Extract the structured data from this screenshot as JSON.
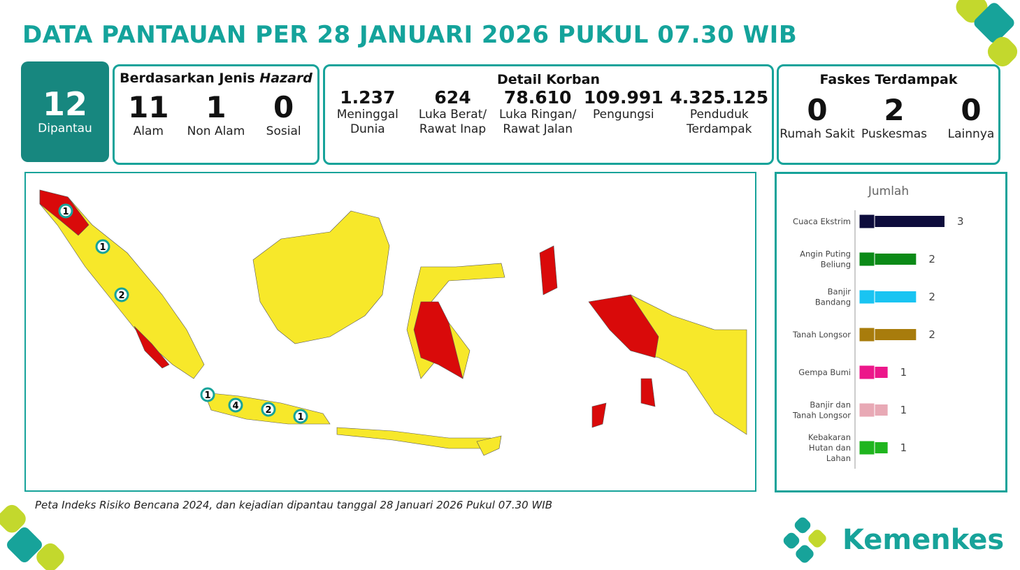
{
  "header": {
    "title": "DATA PANTAUAN PER 28 JANUARI 2026 PUKUL 07.30 WIB"
  },
  "summary": {
    "count": 12,
    "label": "Dipantau"
  },
  "hazard": {
    "title": "Berdasarkan Jenis",
    "title_emphasis": "Hazard",
    "items": [
      {
        "value": 11,
        "label": "Alam"
      },
      {
        "value": 1,
        "label": "Non Alam"
      },
      {
        "value": 0,
        "label": "Sosial"
      }
    ]
  },
  "victims": {
    "title": "Detail Korban",
    "items": [
      {
        "value": "1.237",
        "label": "Meninggal Dunia"
      },
      {
        "value": "624",
        "label": "Luka Berat/ Rawat Inap"
      },
      {
        "value": "78.610",
        "label": "Luka Ringan/ Rawat Jalan"
      },
      {
        "value": "109.991",
        "label": "Pengungsi"
      },
      {
        "value": "4.325.125",
        "label": "Penduduk Terdampak"
      }
    ]
  },
  "facilities": {
    "title": "Faskes Terdampak",
    "items": [
      {
        "value": 0,
        "label": "Rumah Sakit"
      },
      {
        "value": 2,
        "label": "Puskesmas"
      },
      {
        "value": 0,
        "label": "Lainnya"
      }
    ]
  },
  "map": {
    "markers": [
      1,
      1,
      2,
      1,
      4,
      2,
      1
    ],
    "caption": "Peta Indeks Risiko Bencana 2024, dan kejadian dipantau tanggal 28 Januari 2026 Pukul 07.30 WIB"
  },
  "chart_data": {
    "type": "bar",
    "orientation": "horizontal",
    "title": "Jumlah",
    "categories": [
      "Cuaca Ekstrim",
      "Angin Puting Beliung",
      "Banjir Bandang",
      "Tanah Longsor",
      "Gempa Bumi",
      "Banjir dan Tanah Longsor",
      "Kebakaran Hutan dan Lahan"
    ],
    "values": [
      3,
      2,
      2,
      2,
      1,
      1,
      1
    ],
    "colors": [
      "#0d0c3c",
      "#0b8a17",
      "#19c4f2",
      "#a87c0c",
      "#ec178a",
      "#e8a9b5",
      "#1fb51e"
    ]
  },
  "footer": {
    "logo": "Kemenkes"
  }
}
